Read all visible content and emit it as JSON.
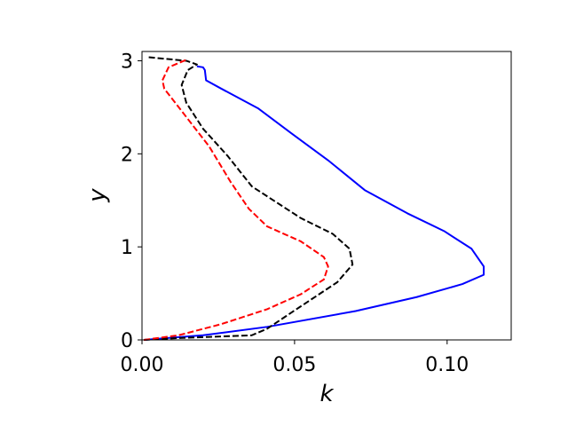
{
  "chart_data": {
    "type": "line",
    "xlabel": "k",
    "ylabel": "y",
    "xlim": [
      0,
      0.121
    ],
    "ylim": [
      0,
      3.1
    ],
    "xticks": [
      {
        "value": 0,
        "label": "0.00"
      },
      {
        "value": 0.05,
        "label": "0.05"
      },
      {
        "value": 0.1,
        "label": "0.10"
      }
    ],
    "yticks": [
      0,
      1,
      2,
      3
    ],
    "series": [
      {
        "color": "#0000ff",
        "linestyle": "solid",
        "x": [
          0.0006,
          0.02,
          0.041,
          0.07,
          0.09,
          0.105,
          0.112,
          0.112,
          0.108,
          0.099,
          0.087,
          0.073,
          0.061,
          0.049,
          0.038,
          0.026,
          0.021,
          0.0206,
          0.02,
          0.018
        ],
        "values": [
          0,
          0.05,
          0.14,
          0.31,
          0.46,
          0.6,
          0.7,
          0.79,
          0.98,
          1.17,
          1.36,
          1.61,
          1.93,
          2.22,
          2.49,
          2.7,
          2.79,
          2.9,
          2.93,
          2.94
        ]
      },
      {
        "color": "#000000",
        "linestyle": "dashed",
        "x": [
          0.0006,
          0.012,
          0.036,
          0.041,
          0.052,
          0.064,
          0.069,
          0.068,
          0.0625,
          0.052,
          0.036,
          0.028,
          0.02,
          0.0145,
          0.013,
          0.015,
          0.018,
          0.0145,
          0.0015
        ],
        "values": [
          0,
          0.02,
          0.05,
          0.12,
          0.36,
          0.62,
          0.81,
          0.98,
          1.14,
          1.31,
          1.65,
          1.98,
          2.27,
          2.55,
          2.74,
          2.9,
          2.96,
          3.0,
          3.04
        ]
      },
      {
        "color": "#ff0000",
        "linestyle": "dashed",
        "x": [
          0.0006,
          0.012,
          0.026,
          0.041,
          0.052,
          0.0596,
          0.061,
          0.0596,
          0.052,
          0.041,
          0.035,
          0.029,
          0.022,
          0.013,
          0.0073,
          0.0067,
          0.0087,
          0.0145
        ],
        "values": [
          0,
          0.05,
          0.17,
          0.33,
          0.49,
          0.65,
          0.79,
          0.89,
          1.06,
          1.22,
          1.41,
          1.7,
          2.08,
          2.46,
          2.7,
          2.79,
          2.93,
          3.01
        ]
      }
    ]
  }
}
